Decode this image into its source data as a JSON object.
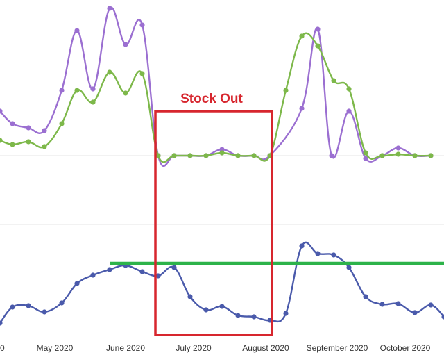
{
  "chart_data": {
    "type": "line",
    "title": "",
    "xlabel": "",
    "ylabel": "",
    "grid": true,
    "x_ticks": [
      "May 2020",
      "June 2020",
      "July 2020",
      "August 2020",
      "September 2020",
      "October 2020"
    ],
    "x_ticks_partial": "0",
    "panels": [
      {
        "name": "top",
        "series": [
          {
            "color": "#9b6fd1",
            "points": [
              [
                0,
                160
              ],
              [
                18,
                178
              ],
              [
                41,
                184
              ],
              [
                64,
                188
              ],
              [
                89,
                130
              ],
              [
                111,
                44
              ],
              [
                134,
                128
              ],
              [
                158,
                12
              ],
              [
                181,
                64
              ],
              [
                205,
                36
              ],
              [
                228,
                224
              ],
              [
                251,
                224
              ],
              [
                274,
                224
              ],
              [
                297,
                224
              ],
              [
                320,
                215
              ],
              [
                343,
                224
              ],
              [
                366,
                224
              ],
              [
                389,
                224
              ],
              [
                435,
                156
              ],
              [
                458,
                42
              ],
              [
                478,
                224
              ],
              [
                503,
                160
              ],
              [
                527,
                228
              ],
              [
                551,
                224
              ],
              [
                574,
                213
              ],
              [
                598,
                224
              ],
              [
                621,
                224
              ]
            ]
          },
          {
            "color": "#7db84a",
            "points": [
              [
                0,
                202
              ],
              [
                18,
                208
              ],
              [
                41,
                204
              ],
              [
                64,
                211
              ],
              [
                89,
                178
              ],
              [
                111,
                130
              ],
              [
                134,
                147
              ],
              [
                158,
                104
              ],
              [
                181,
                134
              ],
              [
                205,
                106
              ],
              [
                228,
                224
              ],
              [
                251,
                224
              ],
              [
                274,
                224
              ],
              [
                297,
                224
              ],
              [
                320,
                220
              ],
              [
                343,
                224
              ],
              [
                366,
                224
              ],
              [
                389,
                224
              ],
              [
                412,
                130
              ],
              [
                435,
                52
              ],
              [
                458,
                66
              ],
              [
                481,
                116
              ],
              [
                503,
                128
              ],
              [
                527,
                220
              ],
              [
                551,
                224
              ],
              [
                574,
                222
              ],
              [
                598,
                224
              ],
              [
                621,
                224
              ]
            ]
          }
        ]
      },
      {
        "name": "bottom",
        "series": [
          {
            "color": "#4a5aab",
            "points": [
              [
                0,
                465
              ],
              [
                18,
                442
              ],
              [
                41,
                440
              ],
              [
                64,
                449
              ],
              [
                89,
                436
              ],
              [
                111,
                408
              ],
              [
                134,
                396
              ],
              [
                158,
                388
              ],
              [
                181,
                382
              ],
              [
                205,
                391
              ],
              [
                228,
                397
              ],
              [
                251,
                385
              ],
              [
                274,
                427
              ],
              [
                297,
                446
              ],
              [
                320,
                441
              ],
              [
                343,
                454
              ],
              [
                366,
                456
              ],
              [
                389,
                461
              ],
              [
                412,
                451
              ],
              [
                435,
                354
              ],
              [
                458,
                365
              ],
              [
                481,
                367
              ],
              [
                503,
                385
              ],
              [
                527,
                427
              ],
              [
                551,
                438
              ],
              [
                574,
                437
              ],
              [
                598,
                450
              ],
              [
                621,
                439
              ],
              [
                640,
                456
              ]
            ]
          }
        ]
      }
    ],
    "reference_line": {
      "color": "#2db34a"
    },
    "annotation": {
      "label": "Stock Out",
      "color": "#d7262e"
    }
  }
}
